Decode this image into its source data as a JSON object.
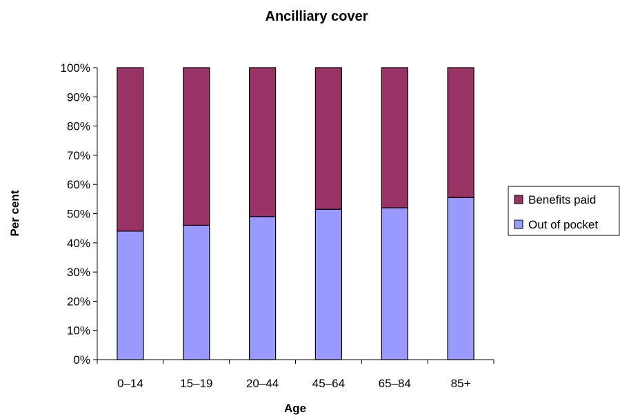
{
  "chart_data": {
    "type": "bar",
    "stacked": true,
    "title": "Ancilliary cover",
    "xlabel": "Age",
    "ylabel": "Per cent",
    "categories": [
      "0–14",
      "15–19",
      "20–44",
      "45–64",
      "65–84",
      "85+"
    ],
    "series": [
      {
        "name": "Out of pocket",
        "color": "#9999ff",
        "values": [
          44,
          46,
          49,
          51.5,
          52,
          55.5
        ]
      },
      {
        "name": "Benefits paid",
        "color": "#993366",
        "values": [
          56,
          54,
          51,
          48.5,
          48,
          44.5
        ]
      }
    ],
    "ylim": [
      0,
      100
    ],
    "yticks": [
      "0%",
      "10%",
      "20%",
      "30%",
      "40%",
      "50%",
      "60%",
      "70%",
      "80%",
      "90%",
      "100%"
    ],
    "grid": false,
    "legend": {
      "position": "right",
      "order": [
        "Benefits paid",
        "Out of pocket"
      ]
    }
  }
}
